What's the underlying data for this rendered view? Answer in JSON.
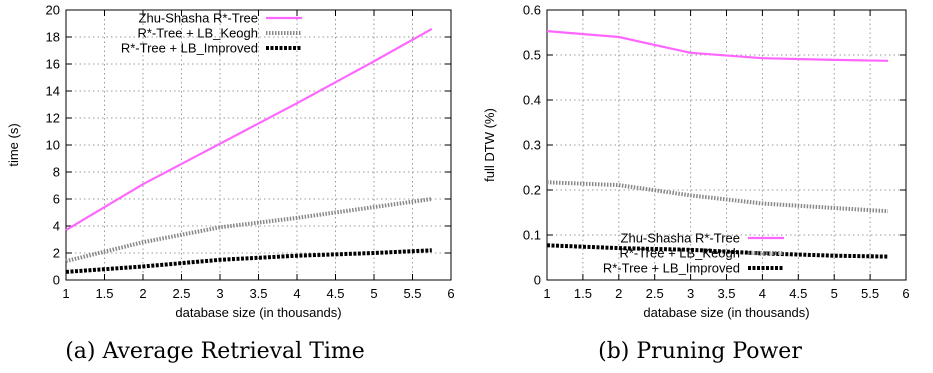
{
  "panels": [
    {
      "caption": "(a) Average Retrieval Time",
      "chart_data": {
        "type": "line",
        "title": "",
        "xlabel": "database size (in thousands)",
        "ylabel": "time (s)",
        "xlim": [
          1,
          6
        ],
        "ylim": [
          0,
          20
        ],
        "xticks": [
          "1",
          "1.5",
          "2",
          "2.5",
          "3",
          "3.5",
          "4",
          "4.5",
          "5",
          "5.5",
          "6"
        ],
        "yticks": [
          "0",
          "2",
          "4",
          "6",
          "8",
          "10",
          "12",
          "14",
          "16",
          "18",
          "20"
        ],
        "grid": true,
        "legend_position": "top-left",
        "series": [
          {
            "name": "Zhu-Shasha R*-Tree",
            "color": "#ff66ff",
            "style": "solid",
            "x": [
              1,
              2,
              3,
              4,
              5,
              5.75
            ],
            "y": [
              3.7,
              7.1,
              10.1,
              13.1,
              16.2,
              18.6
            ]
          },
          {
            "name": "R*-Tree + LB_Keogh",
            "color": "#888888",
            "style": "dotted",
            "x": [
              1,
              2,
              3,
              4,
              5,
              5.75
            ],
            "y": [
              1.4,
              2.8,
              3.9,
              4.6,
              5.4,
              6.0
            ]
          },
          {
            "name": "R*-Tree + LB_Improved",
            "color": "#000000",
            "style": "dashed",
            "x": [
              1,
              2,
              3,
              4,
              5,
              5.75
            ],
            "y": [
              0.6,
              1.0,
              1.5,
              1.8,
              2.0,
              2.2
            ]
          }
        ]
      }
    },
    {
      "caption": "(b) Pruning Power",
      "chart_data": {
        "type": "line",
        "title": "",
        "xlabel": "database size (in thousands)",
        "ylabel": "full DTW  (%)",
        "xlim": [
          1,
          6
        ],
        "ylim": [
          0,
          0.6
        ],
        "xticks": [
          "1",
          "1.5",
          "2",
          "2.5",
          "3",
          "3.5",
          "4",
          "4.5",
          "5",
          "5.5",
          "6"
        ],
        "yticks": [
          "0",
          "0.1",
          "0.2",
          "0.3",
          "0.4",
          "0.5",
          "0.6"
        ],
        "grid": true,
        "legend_position": "bottom-center",
        "series": [
          {
            "name": "Zhu-Shasha R*-Tree",
            "color": "#ff66ff",
            "style": "solid",
            "x": [
              1,
              2,
              3,
              4,
              5,
              5.75
            ],
            "y": [
              0.553,
              0.54,
              0.505,
              0.493,
              0.489,
              0.487
            ]
          },
          {
            "name": "R*-Tree + LB_Keogh",
            "color": "#888888",
            "style": "dotted",
            "x": [
              1,
              2,
              3,
              4,
              5,
              5.75
            ],
            "y": [
              0.217,
              0.211,
              0.188,
              0.17,
              0.16,
              0.153
            ]
          },
          {
            "name": "R*-Tree + LB_Improved",
            "color": "#000000",
            "style": "dashed",
            "x": [
              1,
              2,
              3,
              4,
              5,
              5.75
            ],
            "y": [
              0.077,
              0.071,
              0.067,
              0.059,
              0.054,
              0.052
            ]
          }
        ]
      }
    }
  ]
}
